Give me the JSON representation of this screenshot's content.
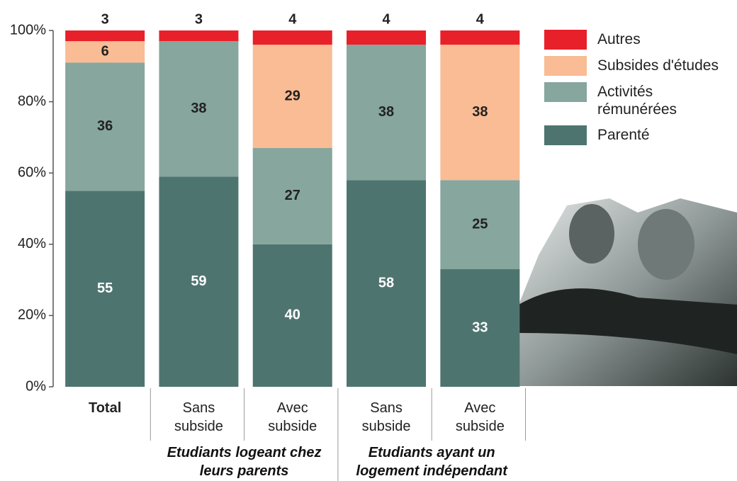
{
  "chart_data": {
    "type": "stacked_bar",
    "categories": [
      "Total",
      "Sans subside",
      "Avec subside",
      "Sans subside",
      "Avec subside"
    ],
    "groups": [
      {
        "label": "Etudiants logeant chez leurs parents",
        "categories": [
          1,
          2
        ]
      },
      {
        "label": "Etudiants ayant un logement indépendant",
        "categories": [
          3,
          4
        ]
      }
    ],
    "series": [
      {
        "name": "Parenté",
        "color": "#4e7470",
        "values": [
          55,
          59,
          40,
          58,
          33
        ]
      },
      {
        "name": "Activités rémunérées",
        "color": "#86a69e",
        "values": [
          36,
          38,
          27,
          38,
          25
        ]
      },
      {
        "name": "Subsides d'études",
        "color": "#f9bc94",
        "values": [
          6,
          0,
          29,
          0,
          38
        ]
      },
      {
        "name": "Autres",
        "color": "#e8202a",
        "values": [
          3,
          3,
          4,
          4,
          4
        ]
      }
    ],
    "ylim": [
      0,
      100
    ],
    "yticks": [
      {
        "value": 0,
        "label": "0%"
      },
      {
        "value": 20,
        "label": "20%"
      },
      {
        "value": 40,
        "label": "40%"
      },
      {
        "value": 60,
        "label": "60%"
      },
      {
        "value": 80,
        "label": "80%"
      },
      {
        "value": 100,
        "label": "100%"
      }
    ],
    "legend": "top-right"
  }
}
